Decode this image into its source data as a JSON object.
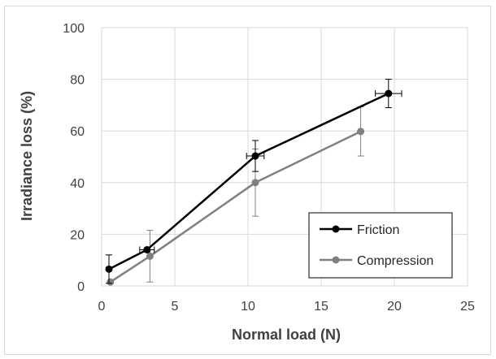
{
  "chart_data": {
    "type": "line",
    "xlabel": "Normal load (N)",
    "ylabel": "Irradiance loss (%)",
    "xlim": [
      0,
      25
    ],
    "ylim": [
      0,
      100
    ],
    "xticks": [
      "0",
      "5",
      "10",
      "15",
      "20",
      "25"
    ],
    "yticks": [
      "0",
      "20",
      "40",
      "60",
      "80",
      "100"
    ],
    "grid": true,
    "legend_position": "bottom-right",
    "series": [
      {
        "name": "Friction",
        "color": "#000000",
        "points": [
          {
            "x": 0.5,
            "y": 6.5,
            "yerr": 5.5,
            "xerr": 0
          },
          {
            "x": 3.1,
            "y": 14.0,
            "yerr": 0,
            "xerr": 0.5
          },
          {
            "x": 10.5,
            "y": 50.3,
            "yerr": 6.0,
            "xerr": 0.6
          },
          {
            "x": 19.6,
            "y": 74.5,
            "yerr": 5.5,
            "xerr": 0.9
          }
        ]
      },
      {
        "name": "Compression",
        "color": "#808080",
        "points": [
          {
            "x": 0.6,
            "y": 1.5,
            "yerr": 0,
            "xerr": 0
          },
          {
            "x": 3.3,
            "y": 11.5,
            "yerr": 10.0,
            "xerr": 0
          },
          {
            "x": 10.5,
            "y": 40.0,
            "yerr": 13.0,
            "xerr": 0
          },
          {
            "x": 17.7,
            "y": 59.8,
            "yerr": 9.5,
            "xerr": 0
          }
        ]
      }
    ]
  }
}
